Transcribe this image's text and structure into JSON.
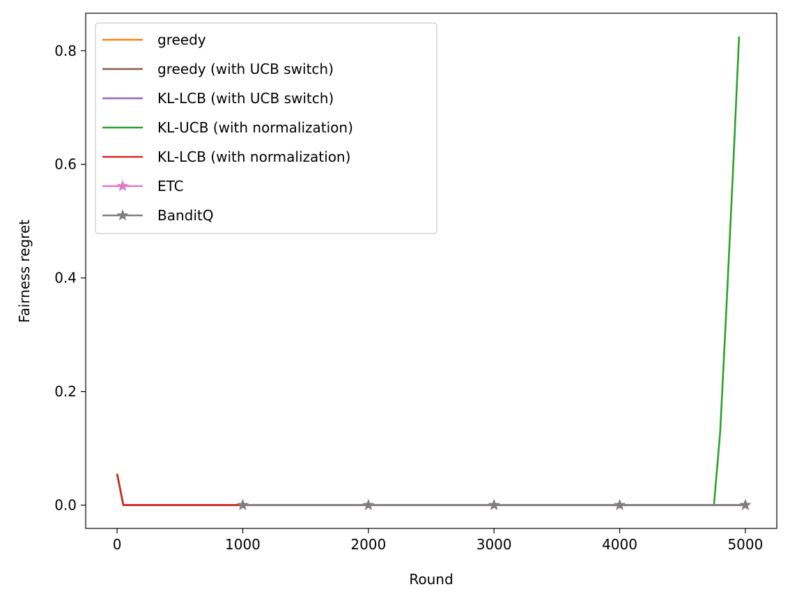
{
  "chart_data": {
    "type": "line",
    "xlabel": "Round",
    "ylabel": "Fairness regret",
    "xlim": [
      -250,
      5250
    ],
    "ylim": [
      -0.041,
      0.866
    ],
    "xticks": [
      0,
      1000,
      2000,
      3000,
      4000,
      5000
    ],
    "xtick_labels": [
      "0",
      "1000",
      "2000",
      "3000",
      "4000",
      "5000"
    ],
    "yticks": [
      0.0,
      0.2,
      0.4,
      0.6,
      0.8
    ],
    "ytick_labels": [
      "0.0",
      "0.2",
      "0.4",
      "0.6",
      "0.8"
    ],
    "grid": false,
    "legend_position": "upper-left",
    "series": [
      {
        "name": "greedy",
        "color": "#ff7f0e",
        "marker": "none",
        "points": [
          [
            0,
            0.055
          ],
          [
            50,
            0.0
          ],
          [
            5000,
            0.0
          ]
        ]
      },
      {
        "name": "greedy (with UCB switch)",
        "color": "#8c564b",
        "marker": "none",
        "points": [
          [
            0,
            0.055
          ],
          [
            50,
            0.0
          ],
          [
            5000,
            0.0
          ]
        ]
      },
      {
        "name": "KL-LCB (with UCB switch)",
        "color": "#9467bd",
        "marker": "none",
        "points": [
          [
            0,
            0.055
          ],
          [
            50,
            0.0
          ],
          [
            5000,
            0.0
          ]
        ]
      },
      {
        "name": "KL-UCB (with normalization)",
        "color": "#2ca02c",
        "marker": "none",
        "points": [
          [
            0,
            0.055
          ],
          [
            50,
            0.0
          ],
          [
            4750,
            0.0
          ],
          [
            4800,
            0.13
          ],
          [
            4850,
            0.35
          ],
          [
            4900,
            0.58
          ],
          [
            4950,
            0.825
          ]
        ]
      },
      {
        "name": "KL-LCB (with normalization)",
        "color": "#d62728",
        "marker": "none",
        "points": [
          [
            0,
            0.055
          ],
          [
            50,
            0.0
          ],
          [
            1000,
            0.0
          ]
        ]
      },
      {
        "name": "ETC",
        "color": "#e377c2",
        "marker": "star",
        "points": [
          [
            1000,
            0.0
          ],
          [
            2000,
            0.0
          ],
          [
            3000,
            0.0
          ],
          [
            4000,
            0.0
          ],
          [
            5000,
            0.0
          ]
        ]
      },
      {
        "name": "BanditQ",
        "color": "#7f7f7f",
        "marker": "star",
        "points": [
          [
            1000,
            0.0
          ],
          [
            2000,
            0.0
          ],
          [
            3000,
            0.0
          ],
          [
            4000,
            0.0
          ],
          [
            5000,
            0.0
          ]
        ]
      }
    ]
  }
}
